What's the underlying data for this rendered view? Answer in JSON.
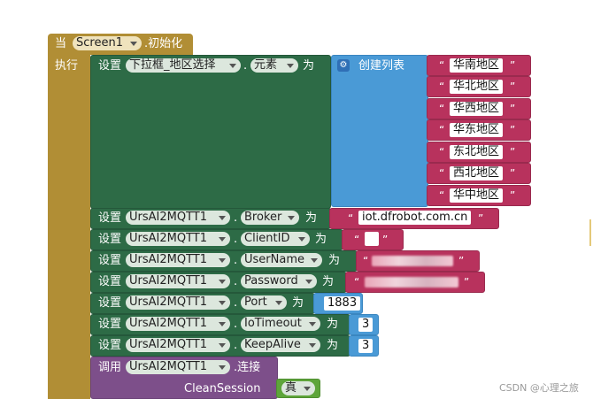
{
  "event": {
    "when_label": "当",
    "component": "Screen1",
    "event_name": ".初始化",
    "do_label": "执行"
  },
  "set_label": "设置",
  "call_label": "调用",
  "to_label": "为",
  "dot": ".",
  "dropdown_block": {
    "component": "下拉框_地区选择",
    "property": "元素"
  },
  "create_list": {
    "label": "创建列表",
    "icon": "gear-icon"
  },
  "regions": [
    "华南地区",
    "华北地区",
    "华西地区",
    "华东地区",
    "东北地区",
    "西北地区",
    "华中地区"
  ],
  "mqtt": {
    "component": "UrsAI2MQTT1",
    "rows": [
      {
        "property": "Broker",
        "value": "iot.dfrobot.com.cn",
        "kind": "text"
      },
      {
        "property": "ClientID",
        "value": "",
        "kind": "masked"
      },
      {
        "property": "UserName",
        "value": "",
        "kind": "masked"
      },
      {
        "property": "Password",
        "value": "",
        "kind": "masked"
      },
      {
        "property": "Port",
        "value": "1883",
        "kind": "number"
      },
      {
        "property": "IoTimeout",
        "value": "3",
        "kind": "number"
      },
      {
        "property": "KeepAlive",
        "value": "3",
        "kind": "number"
      }
    ],
    "connect_method": ".连接",
    "clean_session_label": "CleanSession",
    "clean_session_value": "真"
  },
  "quote": "“",
  "quote_end": "”",
  "watermark": "CSDN @心理之旅",
  "colors": {
    "event": "#b18e35",
    "setter": "#2d6b46",
    "list": "#4a9ad6",
    "text": "#b8325d",
    "call": "#7d4f8a",
    "logic": "#5ea53a"
  }
}
